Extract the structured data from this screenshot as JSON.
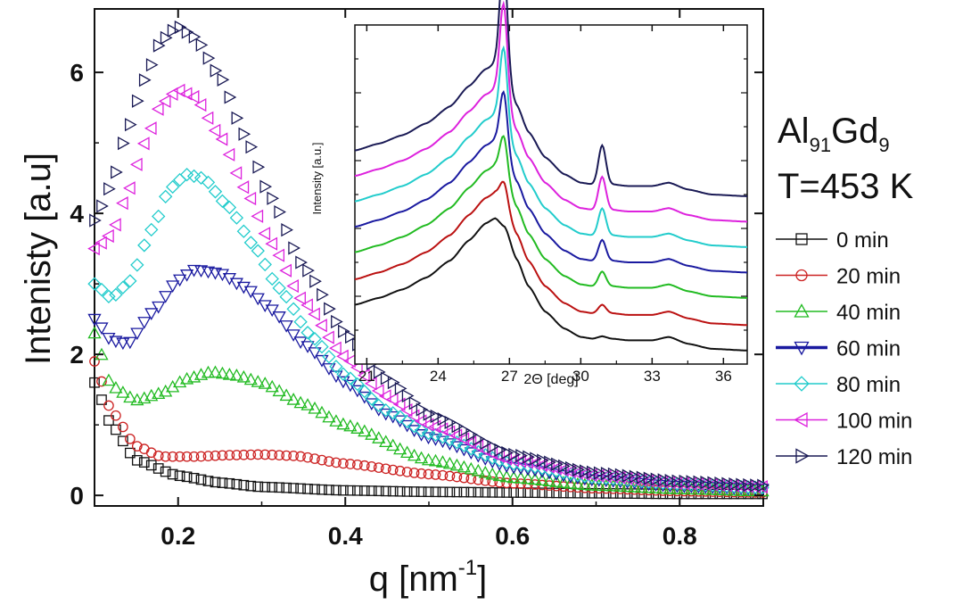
{
  "chart_data": [
    {
      "type": "scatter",
      "name": "main",
      "xlabel": "q [nm",
      "xlabel_sup": "-1",
      "xlabel_end": "]",
      "ylabel": "Intenisty [a.u]",
      "xlim": [
        0.1,
        0.9
      ],
      "ylim": [
        -0.15,
        6.9
      ],
      "xticks": [
        0.2,
        0.4,
        0.6,
        0.8
      ],
      "xtick_labels": [
        "0.2",
        "0.4",
        "0.6",
        "0.8"
      ],
      "yticks": [
        0,
        2,
        4,
        6
      ],
      "ytick_labels": [
        "0",
        "2",
        "4",
        "6"
      ],
      "legend_position": "right",
      "series": [
        {
          "name": "0 min",
          "label": "0 min",
          "color": "#111111",
          "marker": "square",
          "x": [
            0.1,
            0.12,
            0.15,
            0.2,
            0.25,
            0.3,
            0.4,
            0.5,
            0.6,
            0.7,
            0.8,
            0.9
          ],
          "y": [
            1.6,
            1.0,
            0.5,
            0.28,
            0.18,
            0.12,
            0.07,
            0.05,
            0.04,
            0.03,
            0.02,
            0.02
          ]
        },
        {
          "name": "20 min",
          "label": "20 min",
          "color": "#cc2222",
          "marker": "circle",
          "x": [
            0.1,
            0.12,
            0.15,
            0.18,
            0.22,
            0.26,
            0.3,
            0.34,
            0.4,
            0.5,
            0.6,
            0.7,
            0.8,
            0.9
          ],
          "y": [
            1.9,
            1.2,
            0.7,
            0.55,
            0.55,
            0.57,
            0.58,
            0.56,
            0.45,
            0.3,
            0.17,
            0.1,
            0.06,
            0.04
          ]
        },
        {
          "name": "40 min",
          "label": "40 min",
          "color": "#22bb22",
          "marker": "triangle-up",
          "x": [
            0.1,
            0.12,
            0.15,
            0.18,
            0.21,
            0.24,
            0.27,
            0.3,
            0.35,
            0.4,
            0.5,
            0.6,
            0.7,
            0.8,
            0.9
          ],
          "y": [
            2.3,
            1.55,
            1.35,
            1.45,
            1.65,
            1.75,
            1.7,
            1.6,
            1.3,
            1.0,
            0.5,
            0.25,
            0.14,
            0.09,
            0.06
          ]
        },
        {
          "name": "60 min",
          "label": "60 min",
          "color": "#1a1aa0",
          "marker": "triangle-down",
          "x": [
            0.1,
            0.12,
            0.14,
            0.17,
            0.2,
            0.22,
            0.25,
            0.28,
            0.31,
            0.35,
            0.4,
            0.45,
            0.5,
            0.6,
            0.7,
            0.8,
            0.9
          ],
          "y": [
            2.5,
            2.2,
            2.15,
            2.6,
            3.05,
            3.2,
            3.15,
            2.95,
            2.65,
            2.15,
            1.6,
            1.15,
            0.82,
            0.4,
            0.22,
            0.13,
            0.09
          ]
        },
        {
          "name": "80 min",
          "label": "80 min",
          "color": "#22cccc",
          "marker": "diamond",
          "x": [
            0.1,
            0.12,
            0.14,
            0.17,
            0.19,
            0.21,
            0.23,
            0.26,
            0.29,
            0.32,
            0.36,
            0.4,
            0.45,
            0.5,
            0.6,
            0.7,
            0.8,
            0.9
          ],
          "y": [
            3.0,
            2.8,
            3.0,
            3.8,
            4.35,
            4.55,
            4.5,
            4.1,
            3.55,
            2.95,
            2.25,
            1.7,
            1.2,
            0.88,
            0.45,
            0.25,
            0.16,
            0.11
          ]
        },
        {
          "name": "100 min",
          "label": "100 min",
          "color": "#dd22dd",
          "marker": "triangle-left",
          "x": [
            0.1,
            0.12,
            0.14,
            0.16,
            0.18,
            0.2,
            0.22,
            0.25,
            0.28,
            0.31,
            0.35,
            0.4,
            0.45,
            0.5,
            0.6,
            0.7,
            0.8,
            0.9
          ],
          "y": [
            3.5,
            3.7,
            4.3,
            5.0,
            5.55,
            5.75,
            5.65,
            5.1,
            4.35,
            3.6,
            2.75,
            1.95,
            1.4,
            1.0,
            0.5,
            0.28,
            0.17,
            0.12
          ]
        },
        {
          "name": "120 min",
          "label": "120 min",
          "color": "#1a1a55",
          "marker": "triangle-right",
          "x": [
            0.1,
            0.12,
            0.14,
            0.16,
            0.18,
            0.2,
            0.22,
            0.25,
            0.28,
            0.31,
            0.35,
            0.4,
            0.45,
            0.5,
            0.6,
            0.7,
            0.8,
            0.9
          ],
          "y": [
            3.9,
            4.4,
            5.2,
            5.9,
            6.45,
            6.65,
            6.5,
            5.95,
            5.1,
            4.25,
            3.25,
            2.3,
            1.65,
            1.15,
            0.58,
            0.32,
            0.2,
            0.14
          ]
        }
      ]
    },
    {
      "type": "line",
      "name": "inset",
      "xlabel": "2Θ [deg]",
      "ylabel": "Intensity [a.u.]",
      "xlim": [
        20.5,
        37
      ],
      "ylim": [
        0,
        10
      ],
      "xticks": [
        21,
        24,
        27,
        30,
        33,
        36
      ],
      "xtick_labels": [
        "21",
        "24",
        "27",
        "30",
        "33",
        "36"
      ],
      "base_profile": {
        "x": [
          20.5,
          21.5,
          22.5,
          23.5,
          24.5,
          25.3,
          26.0,
          26.4,
          26.8,
          27.3,
          27.8,
          28.5,
          29.3,
          30.0,
          30.5,
          30.9,
          31.3,
          32.0,
          33.0,
          33.7,
          34.5,
          35.5,
          37.0
        ],
        "y": [
          1.75,
          1.95,
          2.2,
          2.55,
          3.05,
          3.65,
          4.15,
          4.3,
          4.05,
          3.1,
          2.3,
          1.55,
          1.05,
          0.8,
          0.75,
          0.82,
          0.75,
          0.7,
          0.7,
          0.8,
          0.6,
          0.45,
          0.4
        ],
        "sharp_peak": {
          "x": 26.75,
          "width": 0.22,
          "height_step": 0.55
        },
        "minor_peak": {
          "x": 30.9,
          "width": 0.22,
          "height_step": 0.18
        }
      },
      "series": [
        {
          "name": "0 min",
          "color": "#111111",
          "offset": 0.0,
          "sharp": 0.0
        },
        {
          "name": "20 min",
          "color": "#bb1111",
          "offset": 0.75,
          "sharp": 1.0
        },
        {
          "name": "40 min",
          "color": "#22bb22",
          "offset": 1.55,
          "sharp": 2.0
        },
        {
          "name": "60 min",
          "color": "#1a1aa0",
          "offset": 2.3,
          "sharp": 3.0
        },
        {
          "name": "80 min",
          "color": "#22cccc",
          "offset": 3.05,
          "sharp": 4.0
        },
        {
          "name": "100 min",
          "color": "#dd22dd",
          "offset": 3.8,
          "sharp": 5.0
        },
        {
          "name": "120 min",
          "color": "#1a1a55",
          "offset": 4.55,
          "sharp": 6.0
        }
      ]
    }
  ],
  "annotation": {
    "alloy_a": "Al",
    "alloy_a_sub": "91",
    "alloy_b": "Gd",
    "alloy_b_sub": "9",
    "temperature": "T=453 K"
  }
}
